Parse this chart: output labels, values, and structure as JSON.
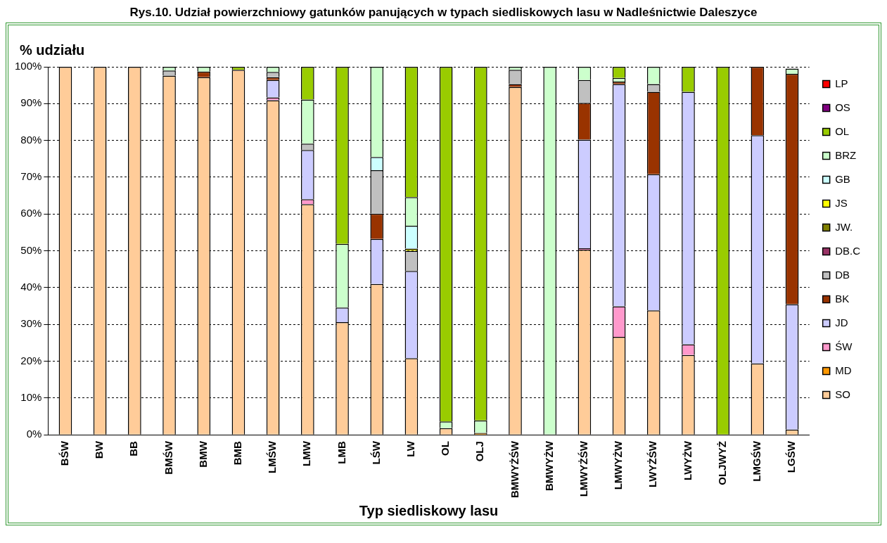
{
  "chart_data": {
    "type": "bar",
    "title": "Rys.10. Udział powierzchniowy gatunków panujących w typach siedliskowych lasu w Nadleśnictwie Daleszyce",
    "ylabel": "% udziału",
    "xlabel": "Typ siedliskowy lasu",
    "categories": [
      "BŚW",
      "BW",
      "BB",
      "BMŚW",
      "BMW",
      "BMB",
      "LMŚW",
      "LMW",
      "LMB",
      "LŚW",
      "LW",
      "OL",
      "OLJ",
      "BMWYŻŚW",
      "BMWYŻW",
      "LMWYŻŚW",
      "LMWYŻW",
      "LWYŻŚW",
      "LWYŻW",
      "OLJWYŻ",
      "LMGŚW",
      "LGŚW"
    ],
    "stacked": true,
    "ylim": [
      0,
      100
    ],
    "yticks": [
      {
        "value": 0,
        "label": "0%"
      },
      {
        "value": 10,
        "label": "10%"
      },
      {
        "value": 20,
        "label": "20%"
      },
      {
        "value": 30,
        "label": "30%"
      },
      {
        "value": 40,
        "label": "40%"
      },
      {
        "value": 50,
        "label": "50%"
      },
      {
        "value": 60,
        "label": "60%"
      },
      {
        "value": 70,
        "label": "70%"
      },
      {
        "value": 80,
        "label": "80%"
      },
      {
        "value": 90,
        "label": "90%"
      },
      {
        "value": 100,
        "label": "100%"
      }
    ],
    "grid": "y",
    "legend": "right",
    "series": [
      {
        "name": "SO",
        "color": "#ffcc99",
        "values": [
          100,
          100,
          100,
          97.6,
          97.2,
          99.2,
          90.9,
          62.7,
          30.6,
          41.0,
          20.8,
          1.8,
          0,
          94.5,
          0,
          50.3,
          26.6,
          33.8,
          21.7,
          0,
          19.4,
          1.4
        ]
      },
      {
        "name": "MD",
        "color": "#ff9900",
        "values": [
          0,
          0,
          0,
          0,
          0,
          0,
          0,
          0,
          0,
          0,
          0,
          0,
          0.5,
          0,
          0,
          0,
          0,
          0,
          0,
          0,
          0,
          0
        ]
      },
      {
        "name": "ŚW",
        "color": "#ff99cc",
        "values": [
          0,
          0,
          0,
          0,
          0,
          0,
          0.8,
          1.3,
          0,
          0,
          0,
          0,
          0,
          0,
          0,
          0.4,
          8.3,
          0,
          2.9,
          0,
          0,
          0
        ]
      },
      {
        "name": "JD",
        "color": "#ccccff",
        "values": [
          0,
          0,
          0,
          0,
          0,
          0,
          4.7,
          13.4,
          4.0,
          12.2,
          23.7,
          0,
          0,
          0,
          0,
          29.5,
          60.4,
          37.0,
          68.6,
          0,
          62.0,
          34.1
        ]
      },
      {
        "name": "BK",
        "color": "#993300",
        "values": [
          0,
          0,
          0,
          0,
          1.5,
          0,
          0.8,
          0,
          0,
          6.9,
          0,
          0,
          0,
          0.8,
          0,
          10.0,
          0.7,
          22.4,
          0,
          0,
          18.6,
          62.6
        ]
      },
      {
        "name": "DB",
        "color": "#c0c0c0",
        "values": [
          0,
          0,
          0,
          1.4,
          0,
          0,
          1.4,
          1.7,
          0,
          11.8,
          5.5,
          0,
          0,
          3.9,
          0,
          6.2,
          0,
          2.1,
          0,
          0,
          0,
          null
        ]
      },
      {
        "name": "DB.C",
        "color": "#993366",
        "values": [
          0,
          0,
          0,
          0,
          0,
          0,
          0,
          0,
          0,
          0,
          0,
          0,
          0,
          0,
          0,
          0,
          0,
          0,
          0,
          0,
          0,
          0
        ]
      },
      {
        "name": "JW.",
        "color": "#808000",
        "values": [
          0,
          0,
          0,
          0,
          0,
          0,
          0,
          0,
          0,
          0,
          0,
          0,
          0,
          0,
          0,
          0,
          0,
          0,
          0,
          0,
          0,
          0
        ]
      },
      {
        "name": "JS",
        "color": "#ffff00",
        "values": [
          0,
          0,
          0,
          0,
          0,
          0,
          0,
          0,
          0,
          0,
          0.6,
          0,
          0,
          0,
          0,
          0,
          0,
          0,
          0,
          0,
          0,
          0
        ]
      },
      {
        "name": "GB",
        "color": "#ccffff",
        "values": [
          0,
          0,
          0,
          0,
          0,
          0,
          0,
          0,
          0,
          3.6,
          6.2,
          0,
          0,
          0,
          0,
          0,
          0,
          0,
          0,
          0,
          0,
          0
        ]
      },
      {
        "name": "BRZ",
        "color": "#ccffcc",
        "values": [
          0,
          0,
          0,
          1.0,
          1.3,
          0,
          1.4,
          12.0,
          17.3,
          24.5,
          7.8,
          1.8,
          3.4,
          0.8,
          100,
          3.6,
          1.0,
          4.7,
          0,
          0,
          0,
          1.4
        ]
      },
      {
        "name": "OL",
        "color": "#99cc00",
        "values": [
          0,
          0,
          0,
          0,
          0,
          0.8,
          0,
          8.9,
          48.1,
          0,
          35.4,
          96.4,
          96.1,
          0,
          0,
          0,
          3.0,
          0,
          6.8,
          100,
          0,
          0
        ]
      },
      {
        "name": "OS",
        "color": "#800080",
        "values": [
          0,
          0,
          0,
          0,
          0,
          0,
          0,
          0,
          0,
          0,
          0,
          0,
          0,
          0,
          0,
          0,
          0,
          0,
          0,
          0,
          0,
          0
        ]
      },
      {
        "name": "LP",
        "color": "#ff0000",
        "values": [
          0,
          0,
          0,
          0,
          0,
          0,
          0,
          0,
          0,
          0,
          0,
          0,
          0,
          0,
          0,
          0,
          0,
          0,
          0,
          0,
          0,
          0
        ]
      }
    ]
  }
}
